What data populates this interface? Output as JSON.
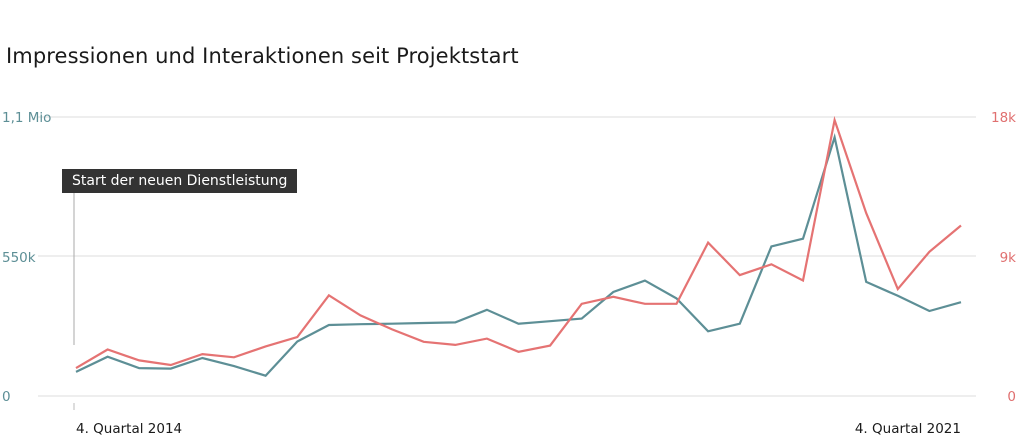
{
  "title": "Impressionen und Interaktionen seit Projektstart",
  "annotation": "Start der neuen Dienstleistung",
  "colors": {
    "impressions": "#5d8f96",
    "interactions": "#e57373",
    "grid": "#dddddd"
  },
  "chart_data": {
    "type": "line",
    "title": "Impressionen und Interaktionen seit Projektstart",
    "x_labels": [
      "4. Quartal 2014",
      "4. Quartal 2021"
    ],
    "y_left_ticks": [
      "1,1 Mio",
      "550k",
      "0"
    ],
    "y_right_ticks": [
      "18k",
      "9k",
      "0"
    ],
    "y_left_range": [
      0,
      1100000
    ],
    "y_right_range": [
      0,
      18000
    ],
    "series": [
      {
        "axis": "left",
        "color": "#5d8f96",
        "values": [
          95000,
          155000,
          110000,
          108000,
          150000,
          118000,
          80000,
          215000,
          280000,
          283000,
          285000,
          288000,
          290000,
          340000,
          285000,
          295000,
          305000,
          410000,
          455000,
          385000,
          255000,
          285000,
          590000,
          620000,
          1020000,
          450000,
          395000,
          335000,
          370000
        ]
      },
      {
        "axis": "right",
        "color": "#e57373",
        "values": [
          1800,
          3000,
          2300,
          2000,
          2700,
          2500,
          3200,
          3800,
          6500,
          5200,
          4300,
          3500,
          3300,
          3700,
          2850,
          3250,
          5950,
          6400,
          5950,
          5950,
          9900,
          7800,
          8500,
          7450,
          17800,
          11800,
          6900,
          9300,
          11000
        ]
      }
    ]
  }
}
